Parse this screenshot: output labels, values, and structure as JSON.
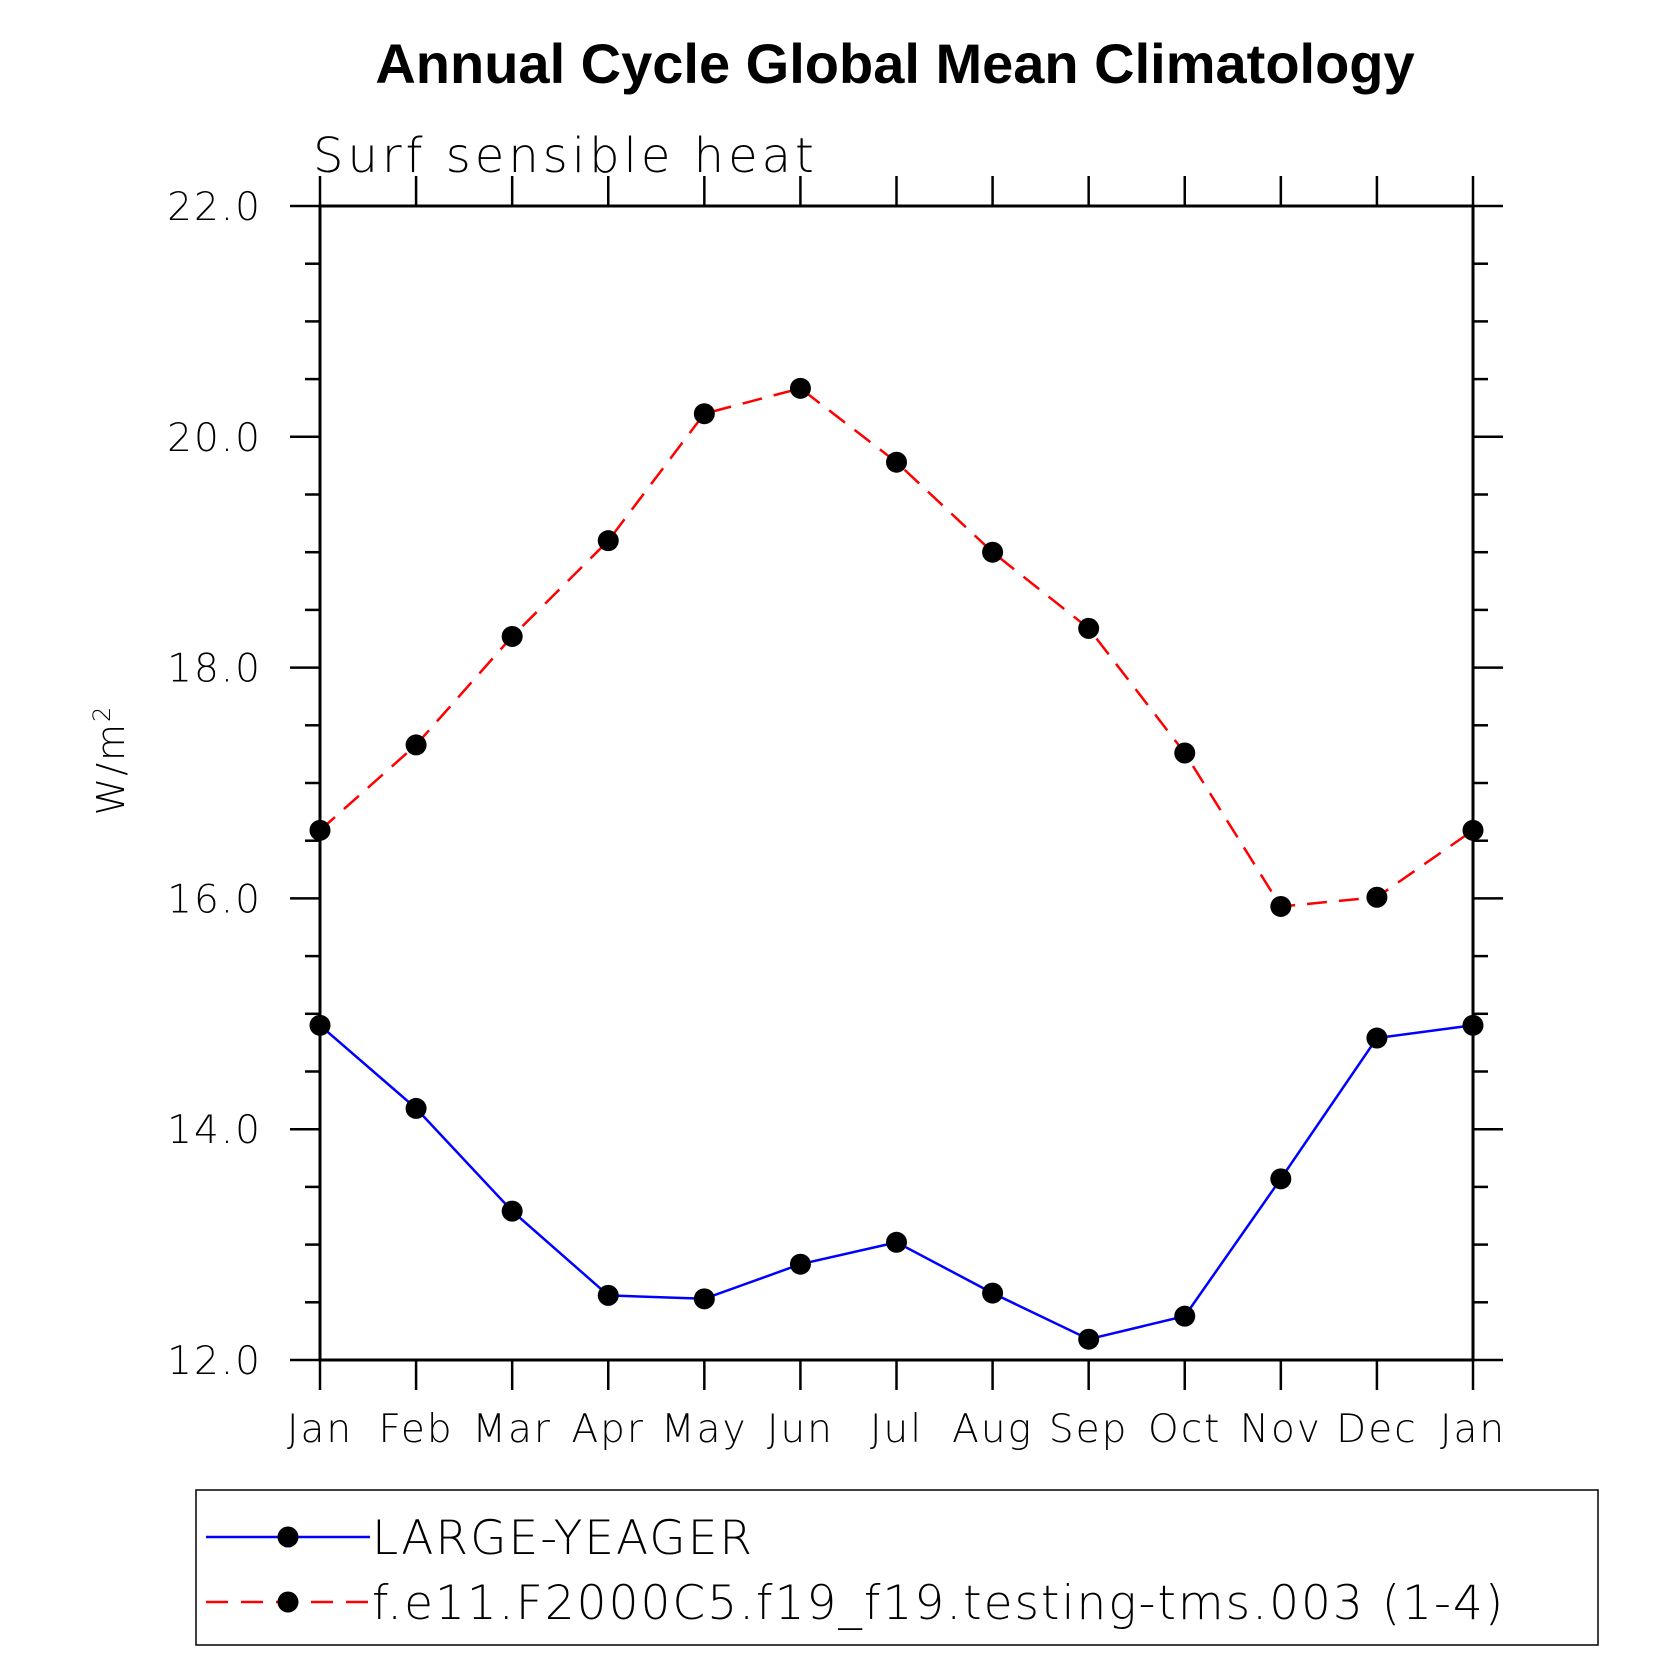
{
  "chart_data": {
    "type": "line",
    "title": "Annual Cycle Global Mean Climatology",
    "subtitle": "Surf sensible heat",
    "xlabel": "",
    "ylabel": "W/m",
    "ylabel_superscript": "2",
    "categories": [
      "Jan",
      "Feb",
      "Mar",
      "Apr",
      "May",
      "Jun",
      "Jul",
      "Aug",
      "Sep",
      "Oct",
      "Nov",
      "Dec",
      "Jan"
    ],
    "ylim": [
      12.0,
      22.0
    ],
    "yticks": [
      12.0,
      14.0,
      16.0,
      18.0,
      20.0,
      22.0
    ],
    "ytick_labels": [
      "12.0",
      "14.0",
      "16.0",
      "18.0",
      "20.0",
      "22.0"
    ],
    "series": [
      {
        "name": "LARGE-YEAGER",
        "color": "#0000ff",
        "dash": "solid",
        "marker": "dot",
        "values": [
          14.9,
          14.18,
          13.29,
          12.56,
          12.53,
          12.83,
          13.02,
          12.58,
          12.18,
          12.38,
          13.57,
          14.79,
          14.9
        ]
      },
      {
        "name": "f.e11.F2000C5.f19_f19.testing-tms.003 (1-4)",
        "color": "#ff0000",
        "dash": "dashed",
        "marker": "dot",
        "values": [
          16.59,
          17.33,
          18.27,
          19.1,
          20.2,
          20.42,
          19.78,
          19.0,
          18.34,
          17.26,
          15.93,
          16.01,
          16.59
        ]
      }
    ],
    "legend_position": "bottom"
  }
}
